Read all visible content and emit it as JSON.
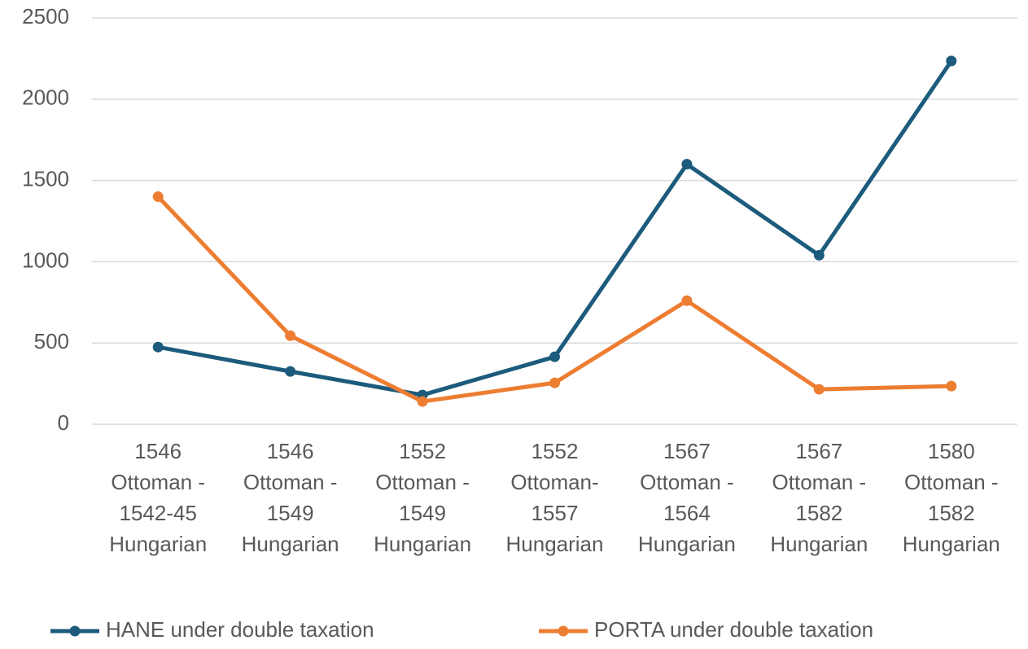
{
  "chart_data": {
    "type": "line",
    "categories": [
      "1546\nOttoman -\n1542-45\nHungarian",
      "1546\nOttoman -\n1549\nHungarian",
      "1552\nOttoman -\n1549\nHungarian",
      "1552\nOttoman-\n1557\nHungarian",
      "1567\nOttoman -\n1564\nHungarian",
      "1567\nOttoman -\n1582\nHungarian",
      "1580\nOttoman -\n1582\nHungarian"
    ],
    "series": [
      {
        "name": "HANE under double taxation",
        "color": "#1d5b7c",
        "values": [
          475,
          325,
          180,
          415,
          1600,
          1040,
          2235
        ]
      },
      {
        "name": "PORTA under double taxation",
        "color": "#ed7d31",
        "values": [
          1400,
          545,
          140,
          255,
          760,
          215,
          235
        ]
      }
    ],
    "ylim": [
      0,
      2500
    ],
    "yticks": [
      0,
      500,
      1000,
      1500,
      2000,
      2500
    ],
    "grid": true,
    "legend": "bottom"
  }
}
